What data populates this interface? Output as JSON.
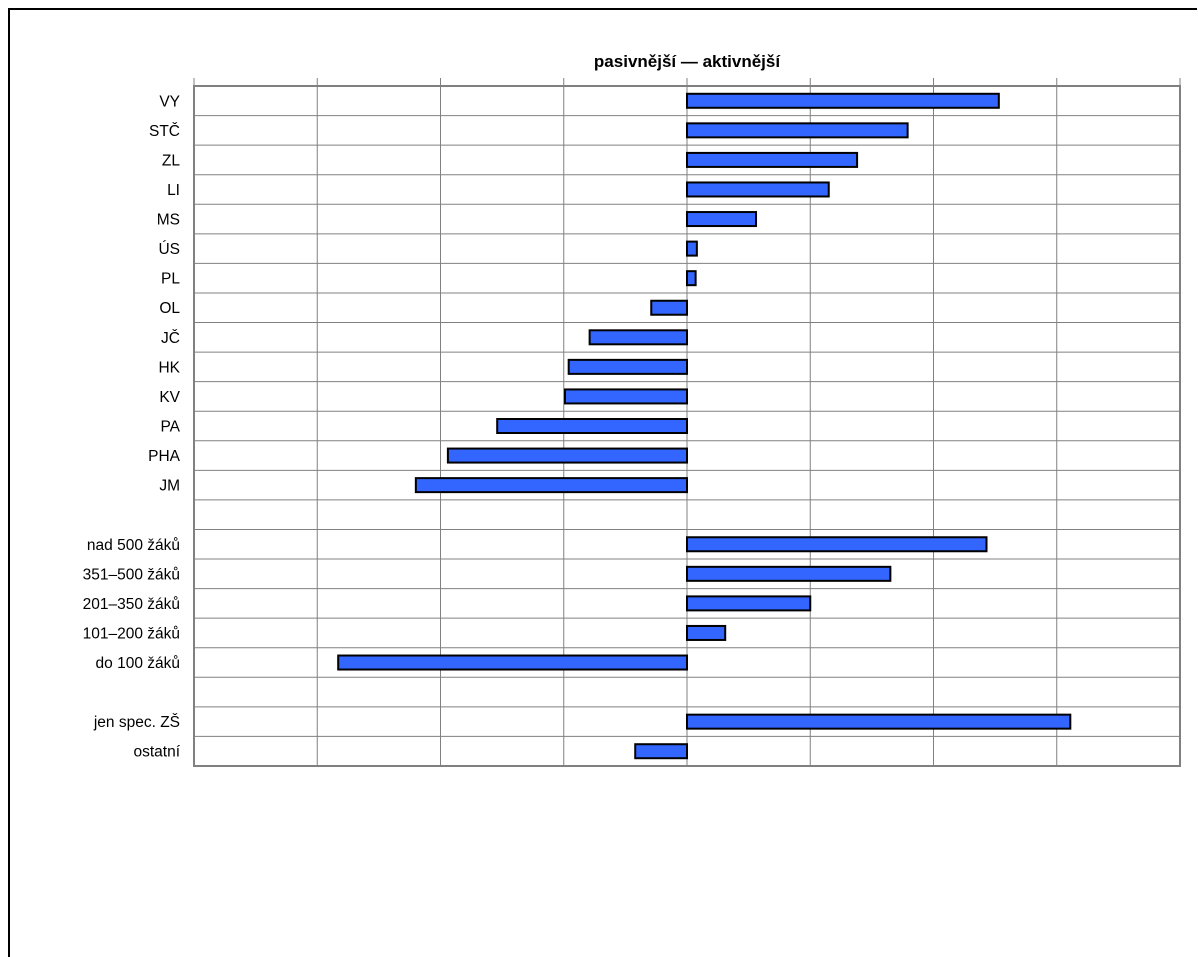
{
  "chart_data": {
    "type": "bar",
    "orientation": "horizontal",
    "title": "pasivnější — aktivnější",
    "xlabel": "",
    "ylabel": "",
    "xlim": [
      -4,
      4
    ],
    "grid": true,
    "legend": "none",
    "colors": {
      "bar": "#3366ff",
      "bar_stroke": "#000000",
      "grid": "#808080",
      "axis": "#808080"
    },
    "categories": [
      "VY",
      "STČ",
      "ZL",
      "LI",
      "MS",
      "ÚS",
      "PL",
      "OL",
      "JČ",
      "HK",
      "KV",
      "PA",
      "PHA",
      "JM",
      "",
      "nad 500 žáků",
      "351–500 žáků",
      "201–350 žáků",
      "101–200 žáků",
      "do 100 žáků",
      "",
      "jen spec. ZŠ",
      "ostatní"
    ],
    "values": [
      2.53,
      1.79,
      1.38,
      1.15,
      0.56,
      0.08,
      0.07,
      -0.29,
      -0.79,
      -0.96,
      -0.99,
      -1.54,
      -1.94,
      -2.2,
      null,
      2.43,
      1.65,
      1.0,
      0.31,
      -2.83,
      null,
      3.11,
      -0.42
    ]
  }
}
